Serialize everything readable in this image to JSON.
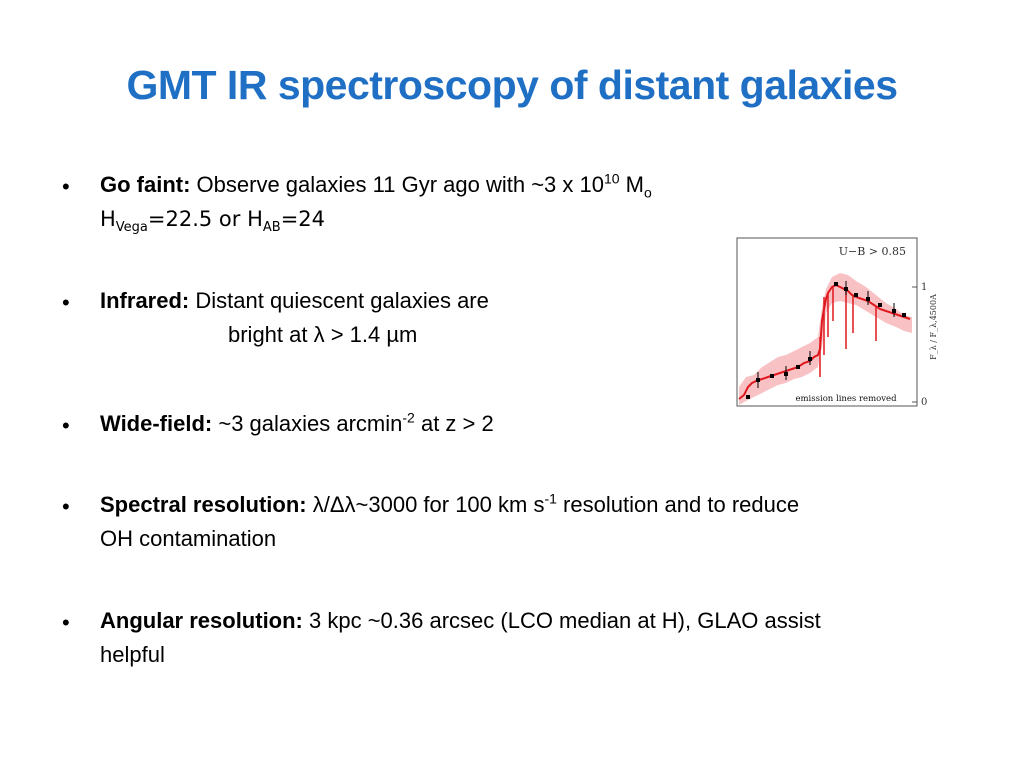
{
  "title": "GMT IR spectroscopy of distant galaxies",
  "bullets": {
    "b1": {
      "label": "Go faint:",
      "text_a": " Observe galaxies 11 Gyr ago with ~3 x 10",
      "sup": "10",
      "text_b": " M",
      "sub_mass": "o",
      "line2_a": "H",
      "line2_sub1": "Vega",
      "line2_b": "=22.5 or H",
      "line2_sub2": "AB",
      "line2_c": "=24"
    },
    "b2": {
      "label": "Infrared:",
      "text": "  Distant quiescent galaxies are",
      "line2": "bright at λ > 1.4 µm"
    },
    "b3": {
      "label": "Wide-field:",
      "text_a": "  ~3 galaxies arcmin",
      "sup": "-2",
      "text_b": " at z > 2"
    },
    "b4": {
      "label": "Spectral resolution:",
      "text_a": "  λ/Δλ~3000 for 100 km s",
      "sup": "-1",
      "text_b": " resolution and to reduce",
      "line2": "OH contamination"
    },
    "b5": {
      "label": "Angular resolution:",
      "text": " 3 kpc ~0.36 arcsec (LCO median at H),  GLAO assist",
      "line2": "helpful"
    }
  },
  "figure": {
    "top_label": "U−B > 0.85",
    "bottom_label": "emission lines removed",
    "y_axis_label": "F_λ / F_λ,4500A",
    "tick_one": "1",
    "tick_zero": "0",
    "colors": {
      "model": "#e0191f",
      "band": "#f7b7bb",
      "points": "#000000"
    }
  }
}
